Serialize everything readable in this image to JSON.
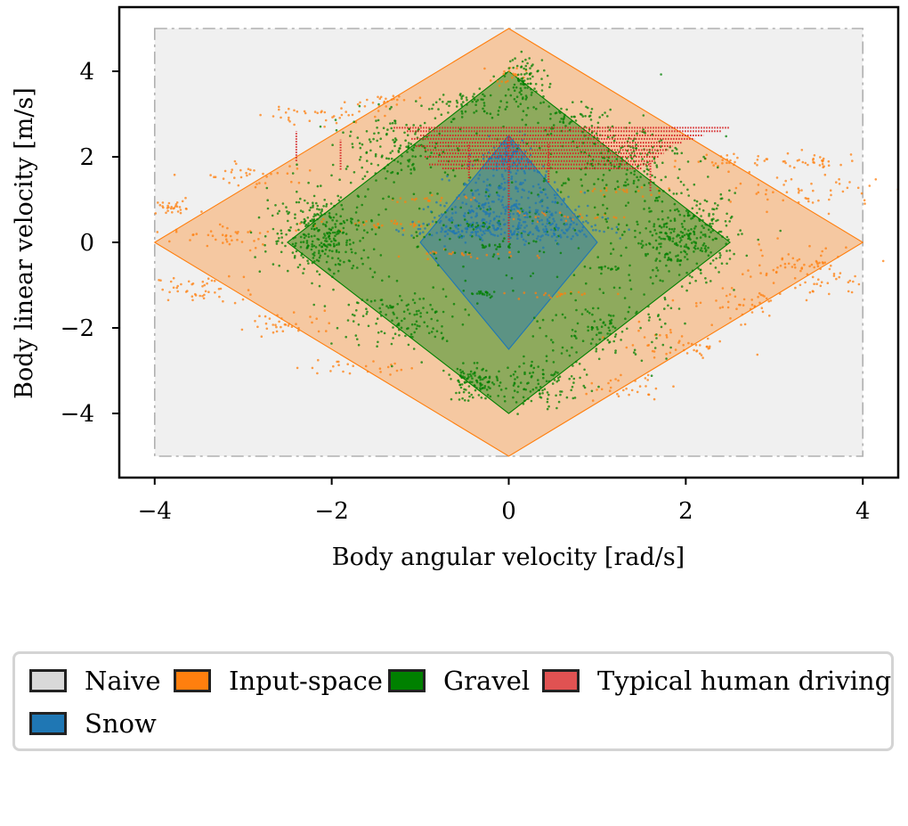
{
  "chart_data": {
    "type": "scatter",
    "title": "",
    "xlabel": "Body angular velocity [rad/s]",
    "ylabel": "Body linear velocity [m/s]",
    "xlim": [
      -4.4,
      4.4
    ],
    "ylim": [
      -5.5,
      5.5
    ],
    "xticks": [
      -4,
      -2,
      0,
      2,
      4
    ],
    "yticks": [
      -4,
      -2,
      0,
      2,
      4
    ],
    "xtick_labels": [
      "−4",
      "−2",
      "0",
      "2",
      "4"
    ],
    "ytick_labels": [
      "−4",
      "−2",
      "0",
      "2",
      "4"
    ],
    "grid": false,
    "legend_position": "below",
    "regions": [
      {
        "name": "Naive",
        "shape": "rectangle",
        "x": [
          -4,
          4
        ],
        "y": [
          -5,
          5
        ],
        "color": "#d9d9d9"
      },
      {
        "name": "Input-space",
        "shape": "diamond",
        "x_half_width": 4.0,
        "y_half_height": 5.0,
        "color": "#ff7f0e"
      },
      {
        "name": "Gravel",
        "shape": "diamond",
        "x_half_width": 2.5,
        "y_half_height": 4.0,
        "color": "#008000"
      },
      {
        "name": "Snow",
        "shape": "triangle_diamond",
        "points": [
          [
            0,
            2.5
          ],
          [
            1.0,
            0
          ],
          [
            0,
            -2.5
          ],
          [
            -1.0,
            0
          ]
        ],
        "color": "#1f77b4"
      }
    ],
    "series": [
      {
        "name": "Input-space",
        "color": "#ff7f0e",
        "clusters": [
          {
            "cx": -3.8,
            "cy": 0.8,
            "sx": 0.15,
            "sy": 0.08,
            "n": 30
          },
          {
            "cx": -3.5,
            "cy": -1.1,
            "sx": 0.25,
            "sy": 0.15,
            "n": 45
          },
          {
            "cx": -3.2,
            "cy": 0.1,
            "sx": 0.3,
            "sy": 0.15,
            "n": 40
          },
          {
            "cx": -2.8,
            "cy": 1.6,
            "sx": 0.3,
            "sy": 0.15,
            "n": 35
          },
          {
            "cx": -2.5,
            "cy": -1.9,
            "sx": 0.3,
            "sy": 0.15,
            "n": 35
          },
          {
            "cx": -2.1,
            "cy": 3.0,
            "sx": 0.35,
            "sy": 0.15,
            "n": 40
          },
          {
            "cx": -1.8,
            "cy": -2.9,
            "sx": 0.3,
            "sy": 0.1,
            "n": 25
          },
          {
            "cx": -1.4,
            "cy": 3.3,
            "sx": 0.2,
            "sy": 0.08,
            "n": 20
          },
          {
            "cx": 0.0,
            "cy": 3.9,
            "sx": 0.1,
            "sy": 0.1,
            "n": 20
          },
          {
            "cx": 1.3,
            "cy": -3.4,
            "sx": 0.25,
            "sy": 0.15,
            "n": 30
          },
          {
            "cx": 1.9,
            "cy": -2.4,
            "sx": 0.35,
            "sy": 0.2,
            "n": 45
          },
          {
            "cx": 2.5,
            "cy": 1.9,
            "sx": 0.25,
            "sy": 0.1,
            "n": 30
          },
          {
            "cx": 2.6,
            "cy": -1.4,
            "sx": 0.35,
            "sy": 0.2,
            "n": 45
          },
          {
            "cx": 3.2,
            "cy": -0.5,
            "sx": 0.4,
            "sy": 0.2,
            "n": 50
          },
          {
            "cx": 3.4,
            "cy": 1.2,
            "sx": 0.4,
            "sy": 0.2,
            "n": 50
          },
          {
            "cx": 3.6,
            "cy": -0.9,
            "sx": 0.2,
            "sy": 0.15,
            "n": 30
          },
          {
            "cx": 3.5,
            "cy": 1.9,
            "sx": 0.25,
            "sy": 0.12,
            "n": 30
          },
          {
            "cx": -1.5,
            "cy": 0.4,
            "sx": 0.4,
            "sy": 0.05,
            "n": 30
          },
          {
            "cx": -0.5,
            "cy": -0.3,
            "sx": 0.4,
            "sy": 0.05,
            "n": 25
          },
          {
            "cx": 0.5,
            "cy": 0.6,
            "sx": 0.4,
            "sy": 0.05,
            "n": 25
          },
          {
            "cx": 1.2,
            "cy": 1.2,
            "sx": 0.3,
            "sy": 0.05,
            "n": 20
          },
          {
            "cx": -0.9,
            "cy": 1.0,
            "sx": 0.3,
            "sy": 0.05,
            "n": 20
          },
          {
            "cx": 0.6,
            "cy": -1.2,
            "sx": 0.3,
            "sy": 0.05,
            "n": 20
          }
        ]
      },
      {
        "name": "Gravel",
        "color": "#008000",
        "clusters": [
          {
            "cx": -2.1,
            "cy": 0.2,
            "sx": 0.3,
            "sy": 0.5,
            "n": 320
          },
          {
            "cx": 2.0,
            "cy": 0.1,
            "sx": 0.3,
            "sy": 0.5,
            "n": 320
          },
          {
            "cx": -0.4,
            "cy": -3.3,
            "sx": 0.15,
            "sy": 0.2,
            "n": 110
          },
          {
            "cx": 0.2,
            "cy": 3.8,
            "sx": 0.12,
            "sy": 0.3,
            "n": 90
          },
          {
            "cx": 0.4,
            "cy": -3.3,
            "sx": 0.25,
            "sy": 0.3,
            "n": 110
          },
          {
            "cx": -1.3,
            "cy": 2.2,
            "sx": 0.35,
            "sy": 0.4,
            "n": 160
          },
          {
            "cx": 1.3,
            "cy": 2.0,
            "sx": 0.35,
            "sy": 0.4,
            "n": 160
          },
          {
            "cx": -1.2,
            "cy": -1.8,
            "sx": 0.35,
            "sy": 0.4,
            "n": 130
          },
          {
            "cx": 1.1,
            "cy": -2.0,
            "sx": 0.35,
            "sy": 0.4,
            "n": 130
          },
          {
            "cx": 0.0,
            "cy": 0.5,
            "sx": 0.9,
            "sy": 0.8,
            "n": 170
          },
          {
            "cx": -0.5,
            "cy": 3.2,
            "sx": 0.3,
            "sy": 0.2,
            "n": 70
          },
          {
            "cx": 0.7,
            "cy": 2.9,
            "sx": 0.3,
            "sy": 0.2,
            "n": 70
          },
          {
            "cx": -0.3,
            "cy": -1.2,
            "sx": 0.1,
            "sy": 0.03,
            "n": 20
          },
          {
            "cx": -0.4,
            "cy": 0.4,
            "sx": 0.1,
            "sy": 0.03,
            "n": 15
          },
          {
            "cx": -0.15,
            "cy": -0.1,
            "sx": 0.08,
            "sy": 0.03,
            "n": 15
          },
          {
            "cx": 1.1,
            "cy": -0.6,
            "sx": 0.1,
            "sy": 0.03,
            "n": 15
          }
        ]
      },
      {
        "name": "Snow",
        "color": "#1f77b4",
        "clusters": [
          {
            "cx": 0.0,
            "cy": 0.3,
            "sx": 0.55,
            "sy": 0.12,
            "n": 180
          },
          {
            "cx": 0.0,
            "cy": 1.2,
            "sx": 0.3,
            "sy": 0.4,
            "n": 160
          },
          {
            "cx": 0.0,
            "cy": 2.0,
            "sx": 0.15,
            "sy": 0.25,
            "n": 90
          },
          {
            "cx": 0.5,
            "cy": 0.5,
            "sx": 0.25,
            "sy": 0.3,
            "n": 80
          },
          {
            "cx": -0.5,
            "cy": 0.5,
            "sx": 0.25,
            "sy": 0.3,
            "n": 80
          }
        ]
      }
    ],
    "human_driving": {
      "name": "Typical human driving",
      "color": "#d62728",
      "rows": [
        {
          "y": 2.68,
          "x0": -1.3,
          "x1": 2.5
        },
        {
          "y": 2.6,
          "x0": -1.15,
          "x1": 2.4
        },
        {
          "y": 2.5,
          "x0": -1.0,
          "x1": 2.2
        },
        {
          "y": 2.42,
          "x0": -1.1,
          "x1": 2.1
        },
        {
          "y": 2.33,
          "x0": -0.9,
          "x1": 1.95
        },
        {
          "y": 2.25,
          "x0": -1.05,
          "x1": 1.85
        },
        {
          "y": 2.16,
          "x0": -0.95,
          "x1": 1.8
        },
        {
          "y": 2.08,
          "x0": -0.85,
          "x1": 1.75
        },
        {
          "y": 2.0,
          "x0": -0.95,
          "x1": 1.7
        },
        {
          "y": 1.9,
          "x0": -0.8,
          "x1": 1.65
        },
        {
          "y": 1.82,
          "x0": -0.9,
          "x1": 1.6
        },
        {
          "y": 1.73,
          "x0": -0.75,
          "x1": 1.5
        }
      ],
      "verticals": [
        {
          "x": 0.0,
          "y0": 0.0,
          "y1": 2.5
        },
        {
          "x": -2.4,
          "y0": 1.9,
          "y1": 2.6
        },
        {
          "x": -1.9,
          "y0": 1.7,
          "y1": 2.4
        },
        {
          "x": 1.6,
          "y0": 1.2,
          "y1": 1.9
        },
        {
          "x": -0.45,
          "y0": 1.5,
          "y1": 2.3
        },
        {
          "x": 0.45,
          "y0": 1.4,
          "y1": 2.3
        }
      ]
    }
  },
  "legend": {
    "items": [
      {
        "label": "Naive",
        "color": "#d9d9d9"
      },
      {
        "label": "Input-space",
        "color": "#ff7f0e"
      },
      {
        "label": "Gravel",
        "color": "#008000"
      },
      {
        "label": "Typical human driving",
        "color": "#e05252"
      },
      {
        "label": "Snow",
        "color": "#1f77b4"
      }
    ]
  }
}
